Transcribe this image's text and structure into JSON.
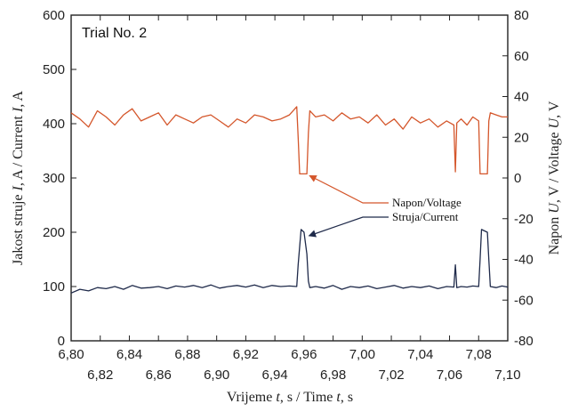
{
  "chart_data": {
    "type": "line",
    "title": "Trial No. 2",
    "xlabel_parts": {
      "pre": "Vrijeme ",
      "v1": "t",
      "mid": ", s / Time ",
      "v2": "t",
      "post": ", s"
    },
    "ylabel_left_parts": {
      "pre": "Jakost struje ",
      "v1": "I",
      "mid": ", A / Current ",
      "v2": "I",
      "post": ", A"
    },
    "ylabel_right_parts": {
      "pre": "Napon ",
      "v1": "U",
      "mid": ", V / Voltage ",
      "v2": "U",
      "post": ", V"
    },
    "xlim": [
      6.8,
      7.1
    ],
    "ylim_left": [
      0,
      600
    ],
    "ylim_right": [
      -80,
      80
    ],
    "x_ticks": [
      "6,80",
      "6,82",
      "6,84",
      "6,86",
      "6,88",
      "6,90",
      "6,92",
      "6,94",
      "6,96",
      "6,98",
      "7,00",
      "7,02",
      "7,04",
      "7,06",
      "7,08",
      "7,10"
    ],
    "x_tick_values": [
      6.8,
      6.82,
      6.84,
      6.86,
      6.88,
      6.9,
      6.92,
      6.94,
      6.96,
      6.98,
      7.0,
      7.02,
      7.04,
      7.06,
      7.08,
      7.1
    ],
    "y_ticks_left": [
      "0",
      "100",
      "200",
      "300",
      "400",
      "500",
      "600"
    ],
    "y_tick_values_left": [
      0,
      100,
      200,
      300,
      400,
      500,
      600
    ],
    "y_ticks_right": [
      "-80",
      "-60",
      "-40",
      "-20",
      "0",
      "20",
      "40",
      "60",
      "80"
    ],
    "y_tick_values_right": [
      -80,
      -60,
      -40,
      -20,
      0,
      20,
      40,
      60,
      80
    ],
    "colors": {
      "voltage": "#d4562b",
      "current": "#1f2a4a"
    },
    "series": [
      {
        "name": "Napon/Voltage",
        "axis": "right",
        "x": [
          6.8,
          6.806,
          6.812,
          6.818,
          6.824,
          6.83,
          6.836,
          6.842,
          6.848,
          6.854,
          6.86,
          6.866,
          6.872,
          6.878,
          6.884,
          6.89,
          6.896,
          6.902,
          6.908,
          6.914,
          6.92,
          6.926,
          6.932,
          6.938,
          6.944,
          6.95,
          6.955,
          6.956,
          6.957,
          6.96,
          6.962,
          6.963,
          6.964,
          6.968,
          6.974,
          6.98,
          6.986,
          6.992,
          6.998,
          7.004,
          7.01,
          7.016,
          7.022,
          7.028,
          7.034,
          7.04,
          7.046,
          7.052,
          7.058,
          7.063,
          7.064,
          7.065,
          7.068,
          7.072,
          7.076,
          7.08,
          7.081,
          7.082,
          7.086,
          7.087,
          7.088,
          7.092,
          7.096,
          7.1
        ],
        "values": [
          32,
          29,
          25,
          33,
          30,
          26,
          31,
          34,
          28,
          30,
          32,
          26,
          31,
          29,
          27,
          30,
          31,
          28,
          25,
          29,
          27,
          31,
          30,
          28,
          29,
          31,
          35,
          20,
          2,
          2,
          2,
          22,
          33,
          30,
          31,
          28,
          32,
          29,
          30,
          27,
          31,
          26,
          29,
          24,
          30,
          27,
          29,
          25,
          28,
          26,
          3,
          27,
          29,
          26,
          30,
          28,
          2,
          2,
          2,
          28,
          32,
          31,
          30,
          30
        ]
      },
      {
        "name": "Struja/Current",
        "axis": "left",
        "x": [
          6.8,
          6.806,
          6.812,
          6.818,
          6.824,
          6.83,
          6.836,
          6.842,
          6.848,
          6.854,
          6.86,
          6.866,
          6.872,
          6.878,
          6.884,
          6.89,
          6.896,
          6.902,
          6.908,
          6.914,
          6.92,
          6.926,
          6.932,
          6.938,
          6.944,
          6.95,
          6.955,
          6.956,
          6.958,
          6.96,
          6.962,
          6.963,
          6.964,
          6.968,
          6.974,
          6.98,
          6.986,
          6.992,
          6.998,
          7.004,
          7.01,
          7.016,
          7.022,
          7.028,
          7.034,
          7.04,
          7.046,
          7.052,
          7.058,
          7.063,
          7.064,
          7.065,
          7.068,
          7.072,
          7.076,
          7.08,
          7.081,
          7.082,
          7.086,
          7.087,
          7.088,
          7.092,
          7.096,
          7.1
        ],
        "values": [
          88,
          95,
          92,
          98,
          96,
          100,
          95,
          102,
          97,
          98,
          100,
          96,
          101,
          99,
          102,
          98,
          103,
          97,
          100,
          102,
          99,
          103,
          98,
          102,
          100,
          101,
          100,
          140,
          205,
          200,
          160,
          110,
          98,
          100,
          97,
          102,
          95,
          100,
          98,
          101,
          96,
          99,
          102,
          97,
          100,
          98,
          101,
          96,
          100,
          99,
          140,
          98,
          100,
          99,
          101,
          100,
          150,
          205,
          200,
          150,
          100,
          98,
          101,
          99
        ]
      }
    ],
    "annotations": [
      {
        "text": "Napon/Voltage",
        "target_x": 6.962,
        "target_y": 2,
        "axis": "right"
      },
      {
        "text": "Struja/Current",
        "target_x": 6.961,
        "target_y": 200,
        "axis": "left"
      }
    ]
  }
}
